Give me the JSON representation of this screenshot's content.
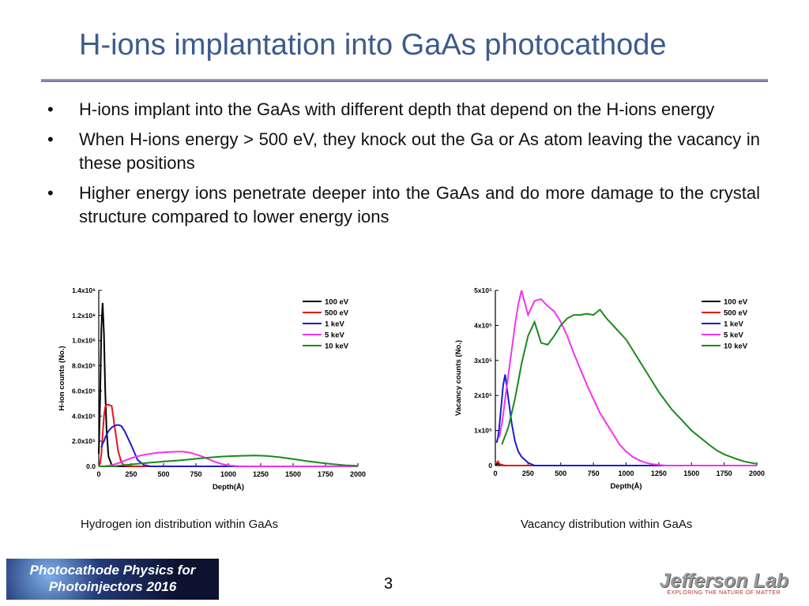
{
  "header": {
    "title": "H-ions implantation into GaAs photocathode"
  },
  "bullets": [
    "H-ions implant into the GaAs with different depth that depend on the H-ions energy",
    "When H-ions energy > 500 eV, they knock out the Ga or As atom leaving the vacancy in these positions",
    "Higher energy ions penetrate deeper into the GaAs and do more damage to the crystal structure compared to lower energy ions"
  ],
  "chart_data": [
    {
      "type": "line",
      "caption": "Hydrogen ion distribution within GaAs",
      "xlabel": "Depth(Å)",
      "ylabel": "H-ion counts (No.)",
      "x": [
        0,
        10,
        20,
        30,
        40,
        50,
        60,
        75,
        100,
        125,
        150,
        175,
        200,
        250,
        300,
        350,
        400,
        450,
        500,
        550,
        600,
        650,
        700,
        750,
        800,
        850,
        900,
        950,
        1000,
        1050,
        1100,
        1150,
        1200,
        1250,
        1300,
        1350,
        1400,
        1450,
        1500,
        1550,
        1600,
        1650,
        1700,
        1750,
        1800,
        1850,
        1900,
        1950,
        2000
      ],
      "xlim": [
        0,
        2000
      ],
      "xticks": [
        0,
        250,
        500,
        750,
        1000,
        1250,
        1500,
        1750,
        2000
      ],
      "ylim": [
        0,
        1400000
      ],
      "yticks": [
        {
          "value": 0,
          "label": "0.0"
        },
        {
          "value": 200000,
          "label": "2.0x10⁵"
        },
        {
          "value": 400000,
          "label": "4.0x10⁵"
        },
        {
          "value": 600000,
          "label": "6.0x10⁵"
        },
        {
          "value": 800000,
          "label": "8.0x10⁵"
        },
        {
          "value": 1000000,
          "label": "1.0x10⁶"
        },
        {
          "value": 1200000,
          "label": "1.2x10⁶"
        },
        {
          "value": 1400000,
          "label": "1.4x10⁶"
        }
      ],
      "legend": "upper right",
      "series": [
        {
          "name": "100 eV",
          "color": "#000000",
          "values": [
            100000,
            500000,
            1100000,
            1300000,
            1050000,
            600000,
            300000,
            80000,
            10000,
            0,
            0,
            0,
            0,
            0,
            0,
            0,
            0,
            0,
            0,
            0,
            0,
            0,
            0,
            0,
            0,
            0,
            0,
            0,
            0,
            0,
            0,
            0,
            0,
            0,
            0,
            0,
            0,
            0,
            0,
            0,
            0,
            0,
            0,
            0,
            0,
            0,
            0,
            0,
            0
          ]
        },
        {
          "name": "500 eV",
          "color": "#e8141a",
          "values": [
            0,
            20000,
            100000,
            250000,
            400000,
            470000,
            490000,
            490000,
            480000,
            300000,
            120000,
            30000,
            5000,
            0,
            0,
            0,
            0,
            0,
            0,
            0,
            0,
            0,
            0,
            0,
            0,
            0,
            0,
            0,
            0,
            0,
            0,
            0,
            0,
            0,
            0,
            0,
            0,
            0,
            0,
            0,
            0,
            0,
            0,
            0,
            0,
            0,
            0,
            0,
            0
          ]
        },
        {
          "name": "1 keV",
          "color": "#1c1cd8",
          "values": [
            null,
            null,
            150000,
            180000,
            200000,
            230000,
            250000,
            280000,
            310000,
            325000,
            330000,
            320000,
            280000,
            170000,
            50000,
            10000,
            0,
            0,
            0,
            0,
            0,
            0,
            0,
            0,
            0,
            0,
            0,
            0,
            0,
            0,
            0,
            0,
            0,
            0,
            0,
            0,
            0,
            0,
            0,
            0,
            0,
            0,
            0,
            0,
            0,
            0,
            0,
            0,
            0
          ]
        },
        {
          "name": "5 keV",
          "color": "#f531f0",
          "values": [
            0,
            0,
            0,
            0,
            0,
            2000,
            3000,
            5000,
            10000,
            17000,
            25000,
            35000,
            45000,
            65000,
            80000,
            92000,
            100000,
            108000,
            112000,
            115000,
            117000,
            117000,
            110000,
            95000,
            78000,
            55000,
            35000,
            18000,
            8000,
            3000,
            0,
            0,
            0,
            0,
            0,
            0,
            0,
            0,
            0,
            0,
            0,
            0,
            0,
            0,
            0,
            0,
            0,
            0,
            0
          ]
        },
        {
          "name": "10 keV",
          "color": "#1a8a1a",
          "values": [
            0,
            0,
            0,
            0,
            0,
            0,
            0,
            0,
            0,
            0,
            5000,
            7000,
            10000,
            15000,
            20000,
            25000,
            30000,
            34000,
            38000,
            42000,
            46000,
            50000,
            55000,
            60000,
            65000,
            70000,
            74000,
            78000,
            80000,
            82000,
            84000,
            85000,
            86000,
            85000,
            82000,
            78000,
            72000,
            65000,
            58000,
            50000,
            43000,
            36000,
            30000,
            24000,
            18000,
            13000,
            9000,
            6000,
            3000
          ]
        }
      ]
    },
    {
      "type": "line",
      "caption": "Vacancy distribution within GaAs",
      "xlabel": "Depth(Å)",
      "ylabel": "Vacancy counts (No.)",
      "x": [
        0,
        10,
        20,
        30,
        40,
        50,
        60,
        75,
        100,
        125,
        150,
        175,
        200,
        250,
        300,
        350,
        400,
        450,
        500,
        550,
        600,
        650,
        700,
        750,
        800,
        850,
        900,
        950,
        1000,
        1050,
        1100,
        1150,
        1200,
        1250,
        1300,
        1350,
        1400,
        1450,
        1500,
        1550,
        1600,
        1650,
        1700,
        1750,
        1800,
        1850,
        1900,
        1950,
        2000
      ],
      "xlim": [
        0,
        2000
      ],
      "xticks": [
        0,
        250,
        500,
        750,
        1000,
        1250,
        1500,
        1750,
        2000
      ],
      "ylim": [
        0,
        500000
      ],
      "yticks": [
        0,
        {
          "value": 100000,
          "label": "1x10⁵"
        },
        {
          "value": 200000,
          "label": "2x10⁵"
        },
        {
          "value": 300000,
          "label": "3x10⁵"
        },
        {
          "value": 400000,
          "label": "4x10⁵"
        },
        {
          "value": 500000,
          "label": "5x10⁵"
        }
      ],
      "legend": "upper right",
      "series": [
        {
          "name": "100 eV",
          "color": "#000000",
          "values": [
            3000,
            4000,
            5000,
            4000,
            3000,
            2000,
            1000,
            0,
            0,
            0,
            0,
            0,
            0,
            0,
            0,
            0,
            0,
            0,
            0,
            0,
            0,
            0,
            0,
            0,
            0,
            0,
            0,
            0,
            0,
            0,
            0,
            0,
            0,
            0,
            0,
            0,
            0,
            0,
            0,
            0,
            0,
            0,
            0,
            0,
            0,
            0,
            0,
            0,
            0
          ]
        },
        {
          "name": "500 eV",
          "color": "#e8141a",
          "values": [
            5000,
            8000,
            12000,
            5000,
            3000,
            2000,
            0,
            0,
            0,
            0,
            0,
            0,
            0,
            0,
            0,
            0,
            0,
            0,
            0,
            0,
            0,
            0,
            0,
            0,
            0,
            0,
            0,
            0,
            0,
            0,
            0,
            0,
            0,
            0,
            0,
            0,
            0,
            0,
            0,
            0,
            0,
            0,
            0,
            0,
            0,
            0,
            0,
            0,
            0
          ]
        },
        {
          "name": "1 keV",
          "color": "#1c1cd8",
          "values": [
            null,
            65000,
            80000,
            110000,
            150000,
            190000,
            230000,
            260000,
            190000,
            120000,
            70000,
            40000,
            25000,
            8000,
            0,
            0,
            0,
            0,
            0,
            0,
            0,
            0,
            0,
            0,
            0,
            0,
            0,
            0,
            0,
            0,
            0,
            0,
            0,
            0,
            0,
            0,
            0,
            0,
            0,
            0,
            0,
            0,
            0,
            0,
            0,
            0,
            0,
            0,
            0
          ]
        },
        {
          "name": "5 keV",
          "color": "#f531f0",
          "values": [
            null,
            null,
            null,
            80000,
            100000,
            120000,
            145000,
            190000,
            260000,
            330000,
            400000,
            460000,
            500000,
            430000,
            470000,
            475000,
            455000,
            440000,
            410000,
            370000,
            320000,
            275000,
            230000,
            190000,
            150000,
            120000,
            90000,
            60000,
            40000,
            25000,
            15000,
            8000,
            4000,
            2000,
            0,
            0,
            0,
            0,
            0,
            0,
            0,
            0,
            0,
            0,
            0,
            0,
            0,
            0,
            0
          ]
        },
        {
          "name": "10 keV",
          "color": "#1a8a1a",
          "values": [
            null,
            null,
            null,
            null,
            null,
            60000,
            70000,
            85000,
            110000,
            150000,
            190000,
            240000,
            290000,
            370000,
            410000,
            350000,
            345000,
            370000,
            400000,
            420000,
            430000,
            430000,
            433000,
            430000,
            445000,
            420000,
            400000,
            380000,
            360000,
            330000,
            300000,
            270000,
            240000,
            210000,
            185000,
            160000,
            140000,
            120000,
            100000,
            85000,
            70000,
            55000,
            42000,
            32000,
            25000,
            18000,
            12000,
            8000,
            5000
          ]
        }
      ]
    }
  ],
  "footer": {
    "event": [
      "Photocathode Physics for",
      "Photoinjectors 2016"
    ],
    "page": "3",
    "lab": "Jefferson Lab",
    "lab_tagline": "EXPLORING THE NATURE OF MATTER"
  }
}
